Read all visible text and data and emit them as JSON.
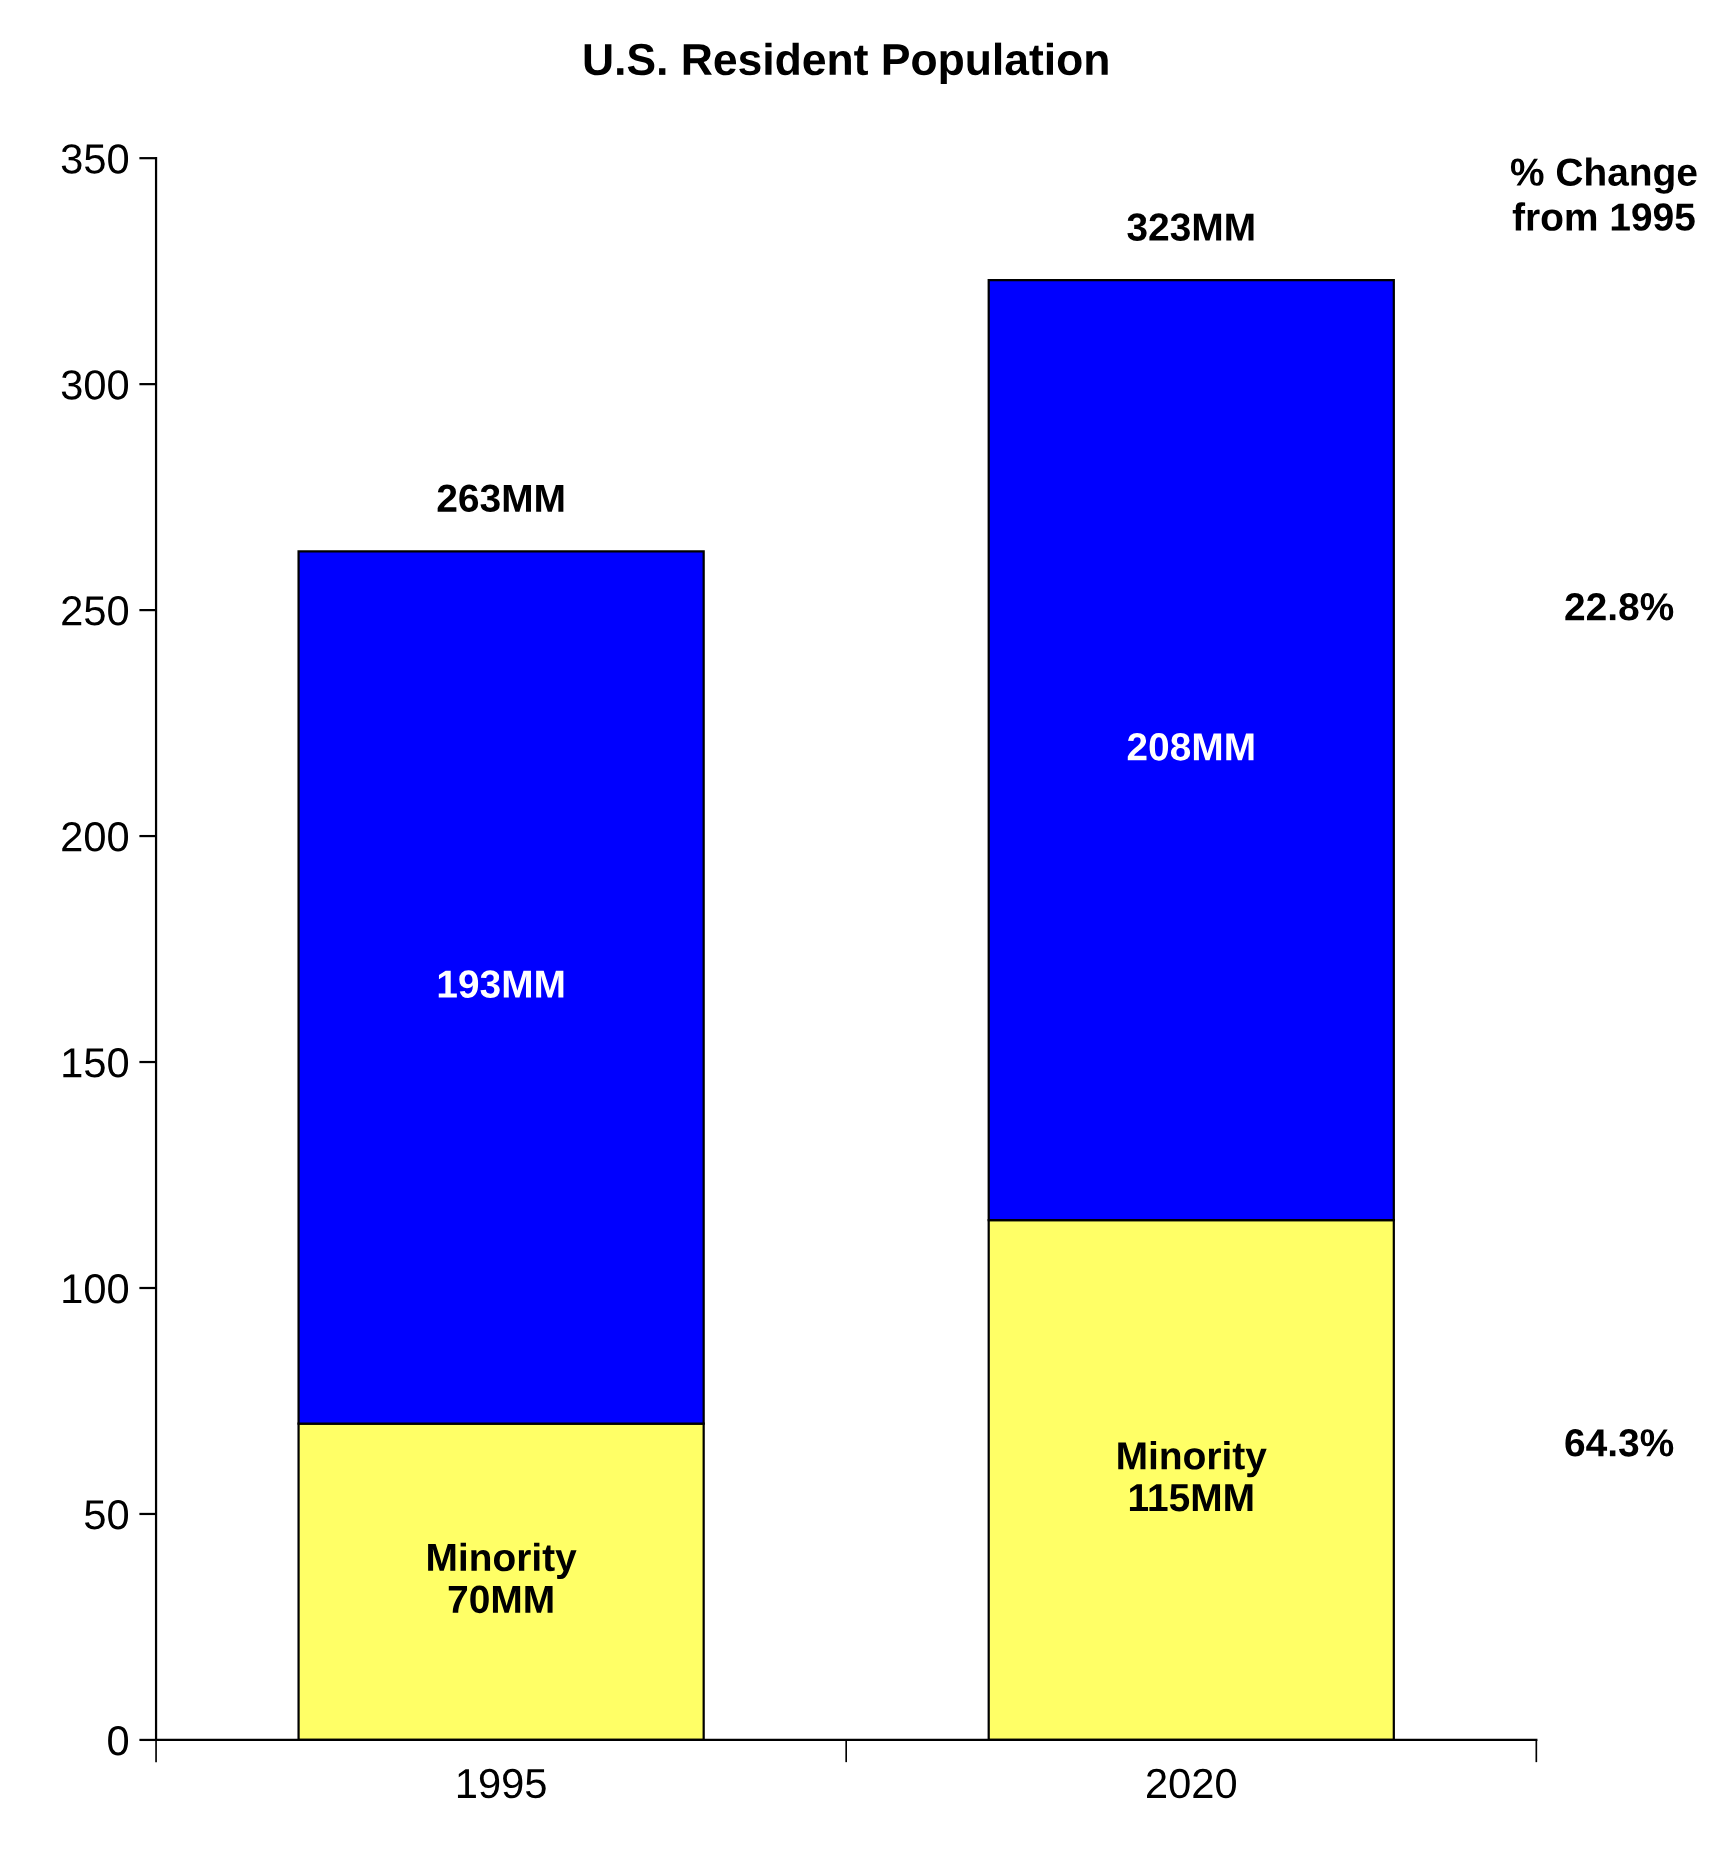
{
  "chart_data": {
    "type": "bar",
    "title": "U.S. Resident Population",
    "categories": [
      "1995",
      "2020"
    ],
    "stacked": true,
    "series": [
      {
        "color": "#ffff66",
        "values": [
          70,
          115
        ],
        "value_labels": [
          "Minority\n70MM",
          "Minority\n115MM"
        ]
      },
      {
        "color": "#0000ff",
        "values": [
          193,
          208
        ],
        "value_labels": [
          "193MM",
          "208MM"
        ]
      }
    ],
    "totals": [
      "263MM",
      "323MM"
    ],
    "ylim": [
      0,
      350
    ],
    "yticks": [
      0,
      50,
      100,
      150,
      200,
      250,
      300,
      350
    ],
    "grid": false,
    "legend": false,
    "annotations": [
      "% Change\nfrom 1995",
      "22.8%",
      "64.3%"
    ]
  }
}
